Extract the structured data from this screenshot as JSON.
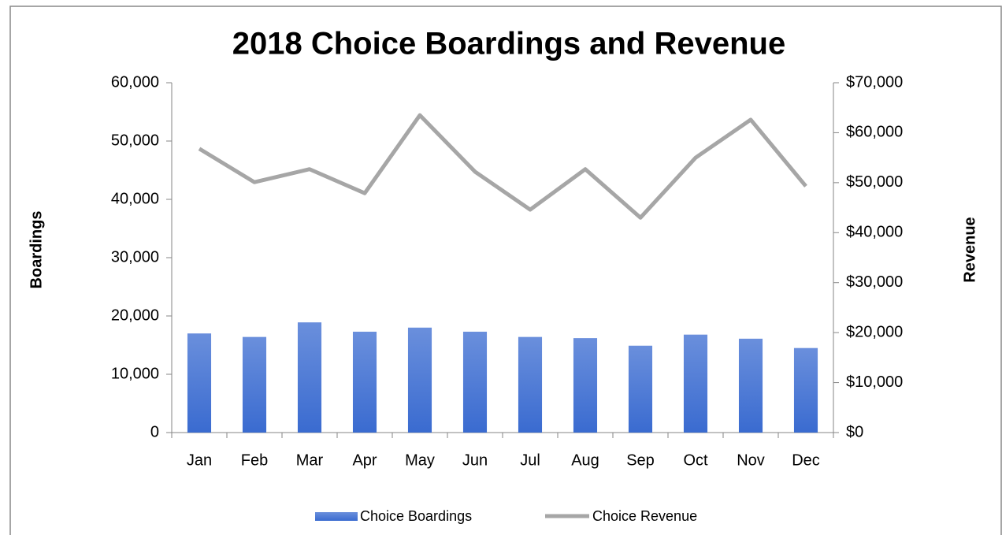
{
  "chart_data": {
    "type": "bar_line",
    "title": "2018 Choice Boardings and Revenue",
    "y_label": "Boardings",
    "y2_label": "Revenue",
    "categories": [
      "Jan",
      "Feb",
      "Mar",
      "Apr",
      "May",
      "Jun",
      "Jul",
      "Aug",
      "Sep",
      "Oct",
      "Nov",
      "Dec"
    ],
    "series": [
      {
        "name": "Choice Boardings",
        "type": "bar",
        "color": "#3a6bd0",
        "values": [
          17000,
          16400,
          18900,
          17300,
          18000,
          17300,
          16400,
          16200,
          14900,
          16800,
          16100,
          14500
        ]
      },
      {
        "name": "Choice Revenue",
        "type": "line",
        "axis": "y2",
        "color": "#a6a6a6",
        "values": [
          56800,
          50100,
          52700,
          47900,
          63500,
          52200,
          44600,
          52700,
          43000,
          55000,
          62600,
          49300
        ]
      }
    ],
    "ylim": [
      0,
      60000
    ],
    "yticks": [
      0,
      {
        "value": 10000,
        "label": "10,000"
      },
      {
        "value": 20000,
        "label": "20,000"
      },
      {
        "value": 30000,
        "label": "30,000"
      },
      {
        "value": 40000,
        "label": "40,000"
      },
      {
        "value": 50000,
        "label": "50,000"
      },
      {
        "value": 60000,
        "label": "60,000"
      }
    ],
    "y2lim": [
      0,
      70000
    ],
    "y2ticks": [
      {
        "value": 0,
        "label": "$0"
      },
      {
        "value": 10000,
        "label": "$10,000"
      },
      {
        "value": 20000,
        "label": "$20,000"
      },
      {
        "value": 30000,
        "label": "$30,000"
      },
      {
        "value": 40000,
        "label": "$40,000"
      },
      {
        "value": 50000,
        "label": "$50,000"
      },
      {
        "value": 60000,
        "label": "$60,000"
      },
      {
        "value": 70000,
        "label": "$70,000"
      }
    ],
    "legend": "bottom"
  }
}
